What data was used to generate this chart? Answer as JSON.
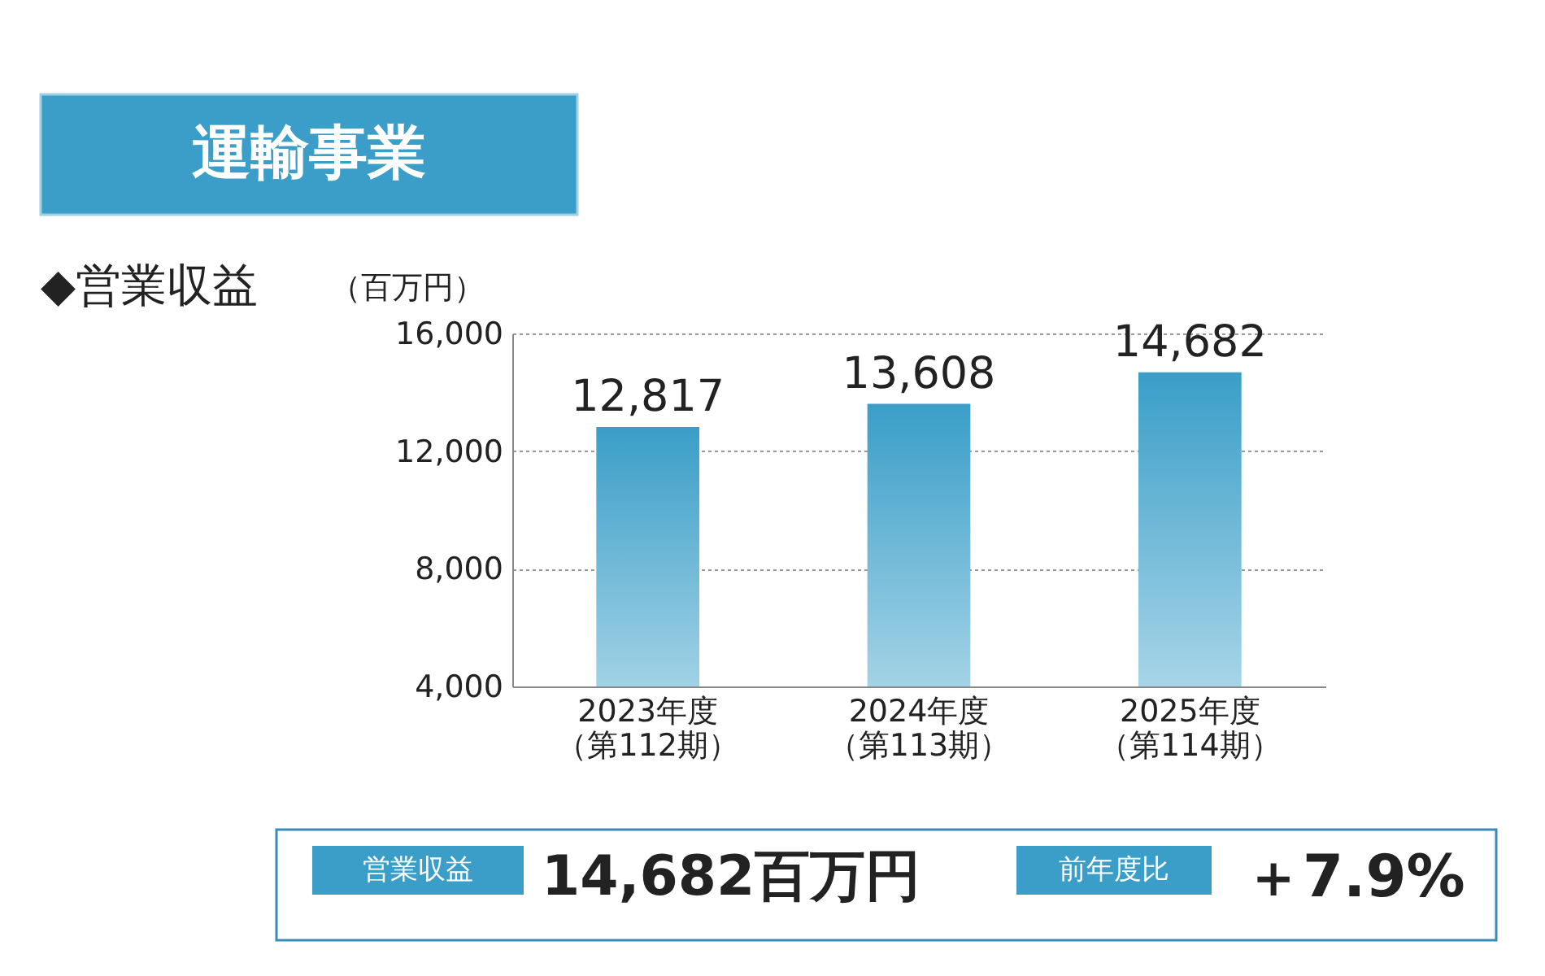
{
  "chart_data": {
    "type": "bar",
    "title": "◆営業収益",
    "ylabel": "（百万円）",
    "categories": [
      "2023年度（第112期）",
      "2024年度（第113期）",
      "2025年度（第114期）"
    ],
    "values": [
      12817,
      13608,
      14682
    ],
    "value_labels": [
      "12,817",
      "13,608",
      "14,682"
    ],
    "color": "#3a9ec8",
    "ylim": [
      4000,
      16000
    ],
    "yticks": [
      {
        "value": 4000,
        "label": "4,000"
      },
      {
        "value": 8000,
        "label": "8,000"
      },
      {
        "value": 12000,
        "label": "12,000"
      },
      {
        "value": 16000,
        "label": "16,000"
      }
    ],
    "grid": "y",
    "annotations": [
      "運輸事業",
      "営業収益",
      "14,682百万円",
      "前年度比",
      "＋7.9%"
    ]
  }
}
